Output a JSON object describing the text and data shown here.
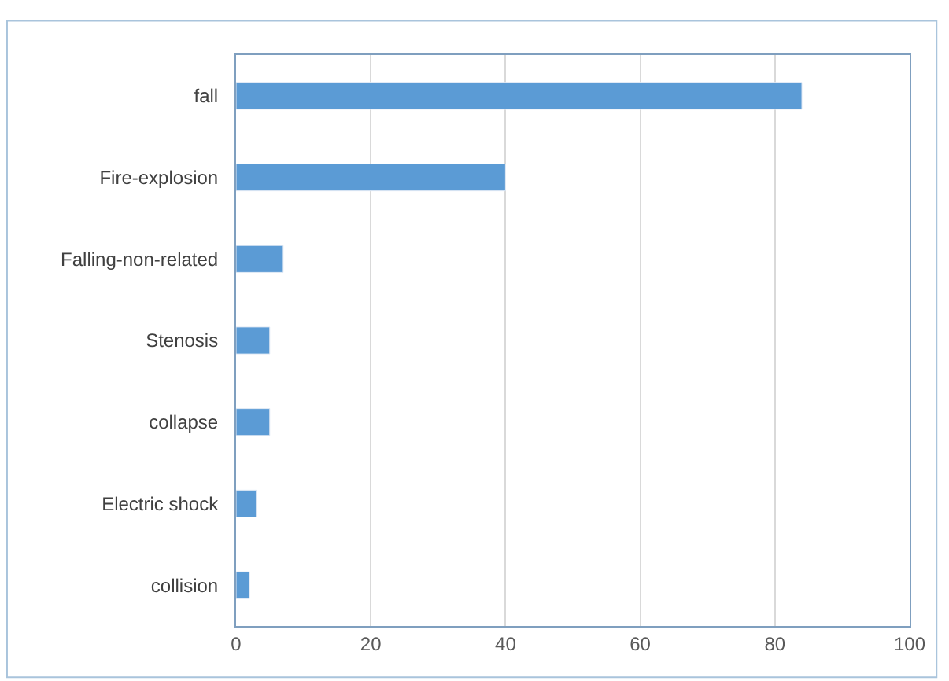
{
  "chart_data": {
    "type": "bar",
    "orientation": "horizontal",
    "categories": [
      "fall",
      "Fire-explosion",
      "Falling-non-related",
      "Stenosis",
      "collapse",
      "Electric shock",
      "collision"
    ],
    "values": [
      84,
      40,
      7,
      5,
      5,
      3,
      2
    ],
    "color": "#5b9bd5",
    "xlim": [
      0,
      100
    ],
    "xticks": [
      0,
      20,
      40,
      60,
      80,
      100
    ],
    "grid": "x"
  }
}
